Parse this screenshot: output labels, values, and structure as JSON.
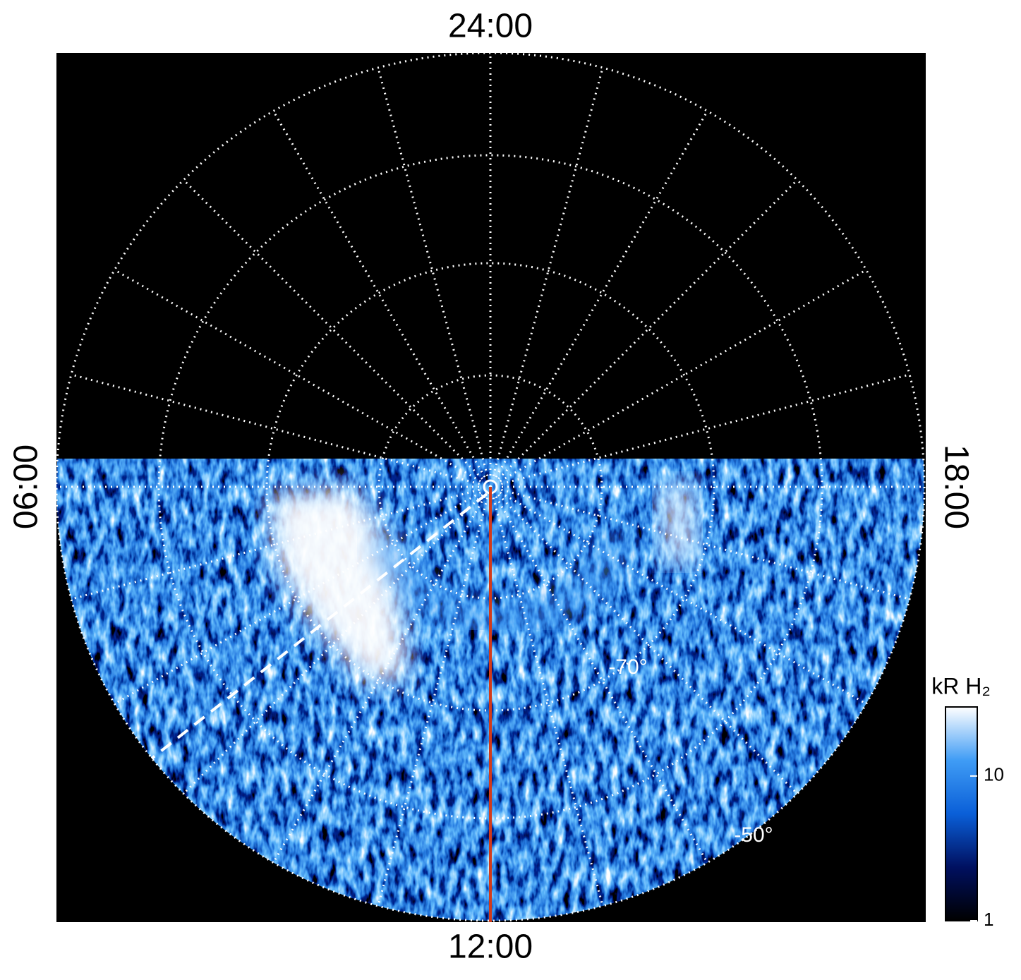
{
  "chart_data": {
    "type": "polar",
    "labels": {
      "top": "24:00",
      "bottom": "12:00",
      "left": "06:00",
      "right": "18:00"
    },
    "latitude_labels": [
      "-70°",
      "-50°"
    ],
    "colorbar": {
      "title": "kR H₂",
      "lim": [
        1,
        30
      ],
      "ticks": [
        1,
        10
      ],
      "log": true,
      "colors": [
        "#000000",
        "#001060",
        "#0a5fd8",
        "#3f9cf5",
        "#ffffff"
      ]
    }
  }
}
